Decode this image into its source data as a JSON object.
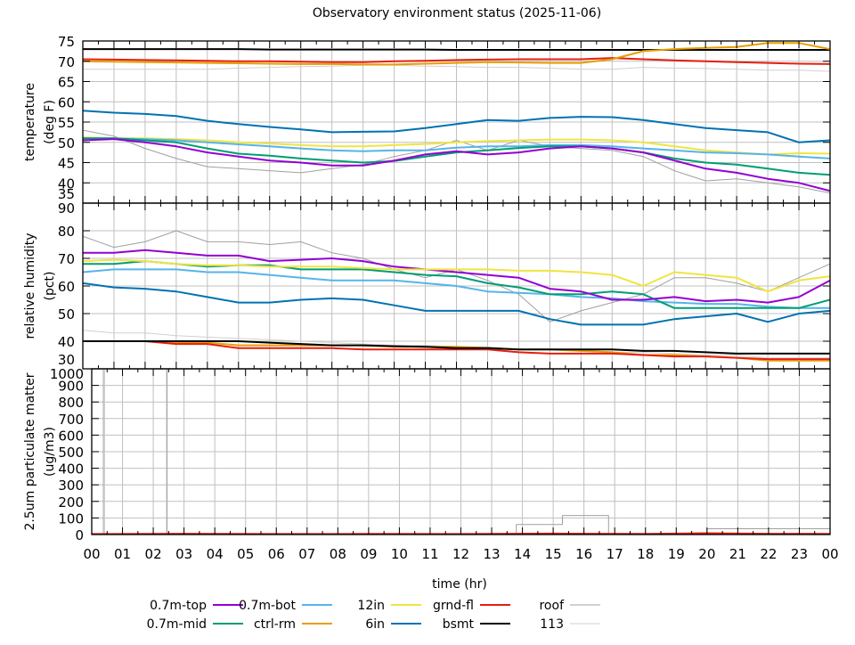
{
  "title": "Observatory environment status (2025-11-06)",
  "colors": {
    "0.7m-top": "#9400d3",
    "0.7m-mid": "#009e73",
    "0.7m-bot": "#56b4e9",
    "ctrl-rm": "#e69f00",
    "12in": "#f0e442",
    "6in": "#0072b2",
    "grnd-fl": "#e51e10",
    "bsmt": "#000000",
    "roof": "#a0a0a0",
    "113": "#d0d0d0",
    "grid": "#c0c0c0"
  },
  "legend": [
    {
      "name": "0.7m-top"
    },
    {
      "name": "0.7m-mid"
    },
    {
      "name": "0.7m-bot"
    },
    {
      "name": "ctrl-rm"
    },
    {
      "name": "12in"
    },
    {
      "name": "6in"
    },
    {
      "name": "grnd-fl"
    },
    {
      "name": "bsmt"
    },
    {
      "name": "roof"
    },
    {
      "name": "113"
    }
  ],
  "chart_data": [
    {
      "type": "line",
      "ylabel": [
        "temperature",
        "(deg F)"
      ],
      "xlabel": "time (hr)",
      "xlim": [
        0,
        24
      ],
      "ylim": [
        35,
        75
      ],
      "yticks": [
        35,
        40,
        45,
        50,
        55,
        60,
        65,
        70,
        75
      ],
      "xticks": [
        "00",
        "01",
        "02",
        "03",
        "04",
        "05",
        "06",
        "07",
        "08",
        "09",
        "10",
        "11",
        "12",
        "13",
        "14",
        "15",
        "16",
        "17",
        "18",
        "19",
        "20",
        "21",
        "22",
        "23",
        "00"
      ],
      "grid": true,
      "x": [
        0,
        1,
        2,
        3,
        4,
        5,
        6,
        7,
        8,
        9,
        10,
        11,
        12,
        13,
        14,
        15,
        16,
        17,
        18,
        19,
        20,
        21,
        22,
        23,
        24
      ],
      "series": [
        {
          "name": "113",
          "values": [
            68,
            68,
            68,
            68,
            68,
            68.3,
            68.5,
            68.7,
            68.8,
            69,
            69,
            68.8,
            68.7,
            68.5,
            68.5,
            68.3,
            68,
            68,
            68.5,
            68.3,
            68.2,
            68,
            67.8,
            67.8,
            67.5
          ]
        },
        {
          "name": "roof",
          "values": [
            53,
            51.5,
            48.5,
            46,
            44,
            43.5,
            43,
            42.5,
            43.5,
            44.5,
            46.5,
            48,
            50.5,
            48,
            50.5,
            49,
            48.5,
            48,
            46.5,
            43,
            40.5,
            41,
            40,
            39,
            37.5
          ]
        },
        {
          "name": "bsmt",
          "values": [
            73,
            73,
            73,
            73,
            73,
            73,
            72.9,
            72.9,
            72.9,
            72.9,
            72.9,
            72.9,
            72.8,
            72.8,
            72.8,
            72.8,
            72.8,
            72.8,
            72.8,
            72.8,
            72.8,
            72.8,
            72.8,
            72.8,
            72.8
          ]
        },
        {
          "name": "grnd-fl",
          "values": [
            70.5,
            70.4,
            70.3,
            70.2,
            70.1,
            70,
            70,
            69.9,
            69.8,
            69.8,
            70,
            70.1,
            70.3,
            70.4,
            70.5,
            70.5,
            70.5,
            70.8,
            70.5,
            70.2,
            70,
            69.8,
            69.6,
            69.4,
            69.3
          ]
        },
        {
          "name": "ctrl-rm",
          "values": [
            70,
            69.9,
            69.8,
            69.7,
            69.6,
            69.5,
            69.4,
            69.3,
            69.3,
            69.2,
            69.2,
            69.4,
            69.6,
            69.8,
            69.7,
            69.6,
            69.6,
            70.5,
            72.5,
            73,
            73.3,
            73.5,
            74.5,
            74.5,
            73
          ]
        },
        {
          "name": "6in",
          "values": [
            57.8,
            57.3,
            57,
            56.5,
            55.3,
            54.5,
            53.8,
            53.2,
            52.5,
            52.6,
            52.7,
            53.5,
            54.5,
            55.5,
            55.3,
            56,
            56.3,
            56.2,
            55.5,
            54.5,
            53.5,
            53,
            52.5,
            50,
            50.5
          ]
        },
        {
          "name": "12in",
          "values": [
            51.2,
            51,
            51,
            50.8,
            50.5,
            50,
            49.7,
            49.3,
            49,
            49,
            49.3,
            49.6,
            50,
            50.3,
            50.5,
            50.7,
            50.7,
            50.5,
            50,
            49,
            48,
            47.5,
            47,
            47.3,
            47.2
          ]
        },
        {
          "name": "0.7m-bot",
          "values": [
            51,
            51,
            50.8,
            50.5,
            50,
            49.5,
            49,
            48.5,
            48,
            47.8,
            48,
            48,
            48.7,
            49,
            49,
            49.3,
            49.3,
            49,
            48.5,
            48,
            47.5,
            47.3,
            47,
            46.5,
            46
          ]
        },
        {
          "name": "0.7m-mid",
          "values": [
            51,
            51,
            50.5,
            50,
            48.5,
            47.2,
            46.7,
            46,
            45.5,
            45,
            45.4,
            46.5,
            47.5,
            48,
            48.6,
            49,
            49,
            48.5,
            47.5,
            46,
            45,
            44.5,
            43.5,
            42.5,
            42
          ]
        },
        {
          "name": "0.7m-top",
          "values": [
            50.5,
            50.8,
            50,
            49,
            47.5,
            46.5,
            45.5,
            45,
            44.3,
            44.3,
            45.5,
            47,
            47.8,
            47,
            47.5,
            48.5,
            49,
            48.5,
            47.5,
            45.5,
            43.5,
            42.5,
            41,
            40,
            38
          ]
        }
      ]
    },
    {
      "type": "line",
      "ylabel": [
        "relative humidity",
        "(pct)"
      ],
      "xlim": [
        0,
        24
      ],
      "ylim": [
        30,
        90
      ],
      "yticks": [
        30,
        40,
        50,
        60,
        70,
        80,
        90
      ],
      "grid": true,
      "x": [
        0,
        1,
        2,
        3,
        4,
        5,
        6,
        7,
        8,
        9,
        10,
        11,
        12,
        13,
        14,
        15,
        16,
        17,
        18,
        19,
        20,
        21,
        22,
        23,
        24
      ],
      "series": [
        {
          "name": "113",
          "values": [
            44,
            43,
            43,
            42,
            41.5,
            41,
            40.5,
            40,
            39.5,
            39,
            38.5,
            38.5,
            38,
            38,
            37,
            37,
            37,
            36,
            36,
            35.5,
            35,
            35,
            34,
            34,
            34
          ]
        },
        {
          "name": "roof",
          "values": [
            78,
            74,
            76,
            80,
            76,
            76,
            75,
            76,
            72,
            70,
            66,
            63,
            66,
            62,
            57,
            47,
            51,
            54,
            57,
            63,
            63,
            61,
            58,
            63,
            68
          ]
        },
        {
          "name": "ctrl-rm",
          "values": [
            40,
            40,
            40,
            39.5,
            39.5,
            38.5,
            38.5,
            38.5,
            38.5,
            38.5,
            38,
            38,
            38,
            37.5,
            37,
            37,
            36.5,
            36,
            35,
            35,
            34.5,
            34,
            33,
            33,
            33
          ]
        },
        {
          "name": "grnd-fl",
          "values": [
            40,
            40,
            40,
            39,
            39,
            37.5,
            37.5,
            37.5,
            37.5,
            37,
            37,
            37,
            37,
            37,
            36,
            35.5,
            35.5,
            35.5,
            35,
            34.5,
            34.5,
            34,
            33.5,
            33.5,
            33.5
          ]
        },
        {
          "name": "bsmt",
          "values": [
            40,
            40,
            40,
            40,
            40,
            40,
            39.5,
            39,
            38.5,
            38.5,
            38.2,
            38,
            37.5,
            37.5,
            37,
            37,
            37,
            37,
            36.5,
            36.5,
            36,
            35.5,
            35.5,
            35.5,
            35.5
          ]
        },
        {
          "name": "6in",
          "values": [
            61,
            59.5,
            59,
            58,
            56,
            54,
            54,
            55,
            55.5,
            55,
            53,
            51,
            51,
            51,
            51,
            48,
            46,
            46,
            46,
            48,
            49,
            50,
            47,
            50,
            51
          ]
        },
        {
          "name": "0.7m-bot",
          "values": [
            65,
            66,
            66,
            66,
            65,
            65,
            64,
            63,
            62,
            62,
            62,
            61,
            60,
            58,
            57.5,
            57,
            56,
            55.5,
            54.5,
            54,
            53.5,
            53.5,
            52.5,
            52,
            52
          ]
        },
        {
          "name": "0.7m-mid",
          "values": [
            68,
            68,
            69,
            68,
            67,
            67.5,
            67.5,
            66,
            66,
            66,
            65,
            64,
            63.5,
            61,
            59.5,
            57,
            57,
            58,
            57,
            52,
            52,
            52,
            52,
            52,
            55
          ]
        },
        {
          "name": "0.7m-top",
          "values": [
            72,
            72,
            73,
            72,
            71,
            71,
            69,
            69.5,
            70,
            69,
            67,
            66,
            65,
            64,
            63,
            59,
            58,
            55,
            55,
            56,
            54.5,
            55,
            54,
            56,
            62
          ]
        },
        {
          "name": "12in",
          "values": [
            69,
            69.5,
            69,
            68,
            67.5,
            67.5,
            67,
            67,
            67,
            66.5,
            66,
            66,
            66,
            66,
            65.5,
            65.5,
            65,
            64,
            60,
            65,
            64,
            63,
            58,
            62,
            63.5
          ]
        }
      ]
    },
    {
      "type": "line",
      "ylabel": [
        "2.5um particulate matter",
        "(ug/m3)"
      ],
      "xlim": [
        0,
        24
      ],
      "ylim": [
        0,
        1000
      ],
      "yticks": [
        0,
        100,
        200,
        300,
        400,
        500,
        600,
        700,
        800,
        900,
        1000
      ],
      "grid": true,
      "series": [
        {
          "name": "113",
          "points": [
            [
              0,
              0
            ],
            [
              0.42,
              0
            ],
            [
              0.42,
              1000
            ],
            [
              2.43,
              1000
            ],
            [
              2.43,
              0
            ],
            [
              24,
              0
            ]
          ]
        },
        {
          "name": "roof",
          "points": [
            [
              0,
              0
            ],
            [
              0.38,
              0
            ],
            [
              0.38,
              1000
            ],
            [
              2.45,
              1000
            ],
            [
              2.45,
              0
            ],
            [
              13.8,
              0
            ],
            [
              13.8,
              60
            ],
            [
              15.3,
              60
            ],
            [
              15.3,
              115
            ],
            [
              16.8,
              115
            ],
            [
              16.8,
              0
            ],
            [
              20,
              0
            ],
            [
              20,
              35
            ],
            [
              24,
              35
            ]
          ]
        },
        {
          "name": "grnd-fl",
          "points": [
            [
              0,
              3
            ],
            [
              3,
              5
            ],
            [
              6,
              3
            ],
            [
              9,
              4
            ],
            [
              12,
              3
            ],
            [
              15,
              6
            ],
            [
              18,
              4
            ],
            [
              20,
              8
            ],
            [
              22,
              5
            ],
            [
              24,
              4
            ]
          ]
        }
      ]
    }
  ]
}
